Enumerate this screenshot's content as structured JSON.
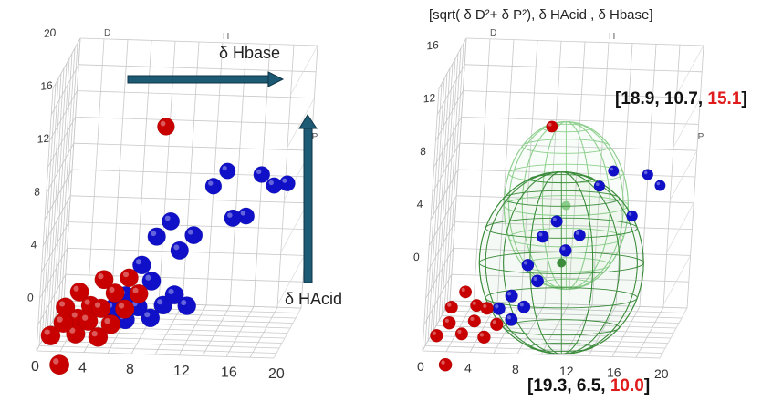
{
  "header": {
    "title": "[sqrt( δ D²+ δ P²),  δ HAcid ,  δ Hbase]"
  },
  "annotations": {
    "hbase_label": "δ Hbase",
    "hacid_label": "δ HAcid",
    "sphere_top": {
      "open": "[",
      "a": "18.9",
      "b": "10.7",
      "c": "15.1",
      "close": "]"
    },
    "sphere_bottom": {
      "open": "[",
      "a": "19.3",
      "b": "6.5",
      "c": "10.0",
      "close": "]"
    }
  },
  "colors": {
    "blue_points": "#1010c8",
    "red_points": "#c80000",
    "arrow": "#1d5a74",
    "sphere_dark": "#3c8c3c",
    "sphere_light": "#8fd08f",
    "highlight": "#e01b1b"
  },
  "chart_data": [
    {
      "type": "scatter",
      "subtype": "3d-scatter",
      "title": "",
      "axes": {
        "D": {
          "label": "D",
          "ticks": [
            "0",
            "4",
            "8",
            "12",
            "16",
            "20"
          ]
        },
        "H": {
          "label": "H",
          "ticks": [
            "0",
            "4",
            "8",
            "12",
            "16",
            "20"
          ]
        },
        "P": {
          "label": "P"
        }
      },
      "series": [
        {
          "color": "blue",
          "points": [
            [
              6,
              3,
              2
            ],
            [
              7,
              2,
              3
            ],
            [
              7,
              4,
              2
            ],
            [
              8,
              3,
              3
            ],
            [
              8,
              6,
              4
            ],
            [
              9,
              5,
              3
            ],
            [
              9,
              8,
              5
            ],
            [
              10,
              9,
              6
            ],
            [
              11,
              7,
              5
            ],
            [
              12,
              8,
              6
            ],
            [
              11,
              4,
              3
            ],
            [
              12,
              3,
              4
            ],
            [
              13,
              11,
              10
            ],
            [
              14,
              12,
              11
            ],
            [
              15,
              9,
              8
            ],
            [
              16,
              9,
              9
            ],
            [
              17,
              12,
              10
            ],
            [
              18,
              11,
              11
            ],
            [
              19,
              11,
              12
            ],
            [
              9,
              2,
              4
            ],
            [
              10,
              3,
              4
            ]
          ]
        },
        {
          "color": "red",
          "points": [
            [
              1,
              1,
              1
            ],
            [
              2,
              2,
              1
            ],
            [
              3,
              1,
              2
            ],
            [
              4,
              2,
              2
            ],
            [
              5,
              1,
              1
            ],
            [
              5,
              3,
              2
            ],
            [
              6,
              2,
              1
            ],
            [
              3,
              4,
              3
            ],
            [
              4,
              3,
              3
            ],
            [
              6,
              4,
              3
            ],
            [
              7,
              3,
              2
            ],
            [
              2,
              3,
              2
            ],
            [
              8,
              4,
              3
            ],
            [
              7,
              5,
              4
            ],
            [
              5,
              5,
              3
            ],
            [
              3,
              2,
              3
            ],
            [
              9,
              16,
              7
            ],
            [
              2,
              -1,
              0
            ]
          ]
        }
      ]
    },
    {
      "type": "scatter",
      "subtype": "3d-scatter-with-spheres",
      "title": "",
      "axes": {
        "D": {
          "label": "D",
          "ticks": [
            "0",
            "4",
            "8",
            "12",
            "16",
            "20"
          ]
        },
        "H": {
          "label": "H",
          "ticks": [
            "0",
            "4",
            "8",
            "12",
            "16",
            "20"
          ]
        },
        "P": {
          "label": "P"
        }
      },
      "spheres": [
        {
          "center": [
            18.9,
            10.7,
            15.1
          ]
        },
        {
          "center": [
            19.3,
            6.5,
            10.0
          ]
        }
      ],
      "series": [
        {
          "color": "blue",
          "points": [
            [
              6,
              3,
              2
            ],
            [
              7,
              2,
              3
            ],
            [
              7,
              4,
              2
            ],
            [
              8,
              3,
              3
            ],
            [
              8,
              6,
              4
            ],
            [
              9,
              5,
              3
            ],
            [
              9,
              8,
              5
            ],
            [
              10,
              9,
              6
            ],
            [
              11,
              7,
              5
            ],
            [
              12,
              8,
              6
            ],
            [
              13,
              11,
              10
            ],
            [
              14,
              12,
              11
            ],
            [
              16,
              9,
              9
            ],
            [
              17,
              12,
              10
            ],
            [
              18,
              11,
              11
            ]
          ]
        },
        {
          "color": "red",
          "points": [
            [
              1,
              1,
              1
            ],
            [
              2,
              2,
              1
            ],
            [
              3,
              1,
              2
            ],
            [
              4,
              2,
              2
            ],
            [
              5,
              1,
              1
            ],
            [
              5,
              3,
              2
            ],
            [
              6,
              2,
              1
            ],
            [
              3,
              4,
              3
            ],
            [
              4,
              3,
              3
            ],
            [
              2,
              3,
              2
            ],
            [
              9,
              16,
              7
            ],
            [
              2,
              -1,
              0
            ]
          ]
        }
      ]
    }
  ]
}
